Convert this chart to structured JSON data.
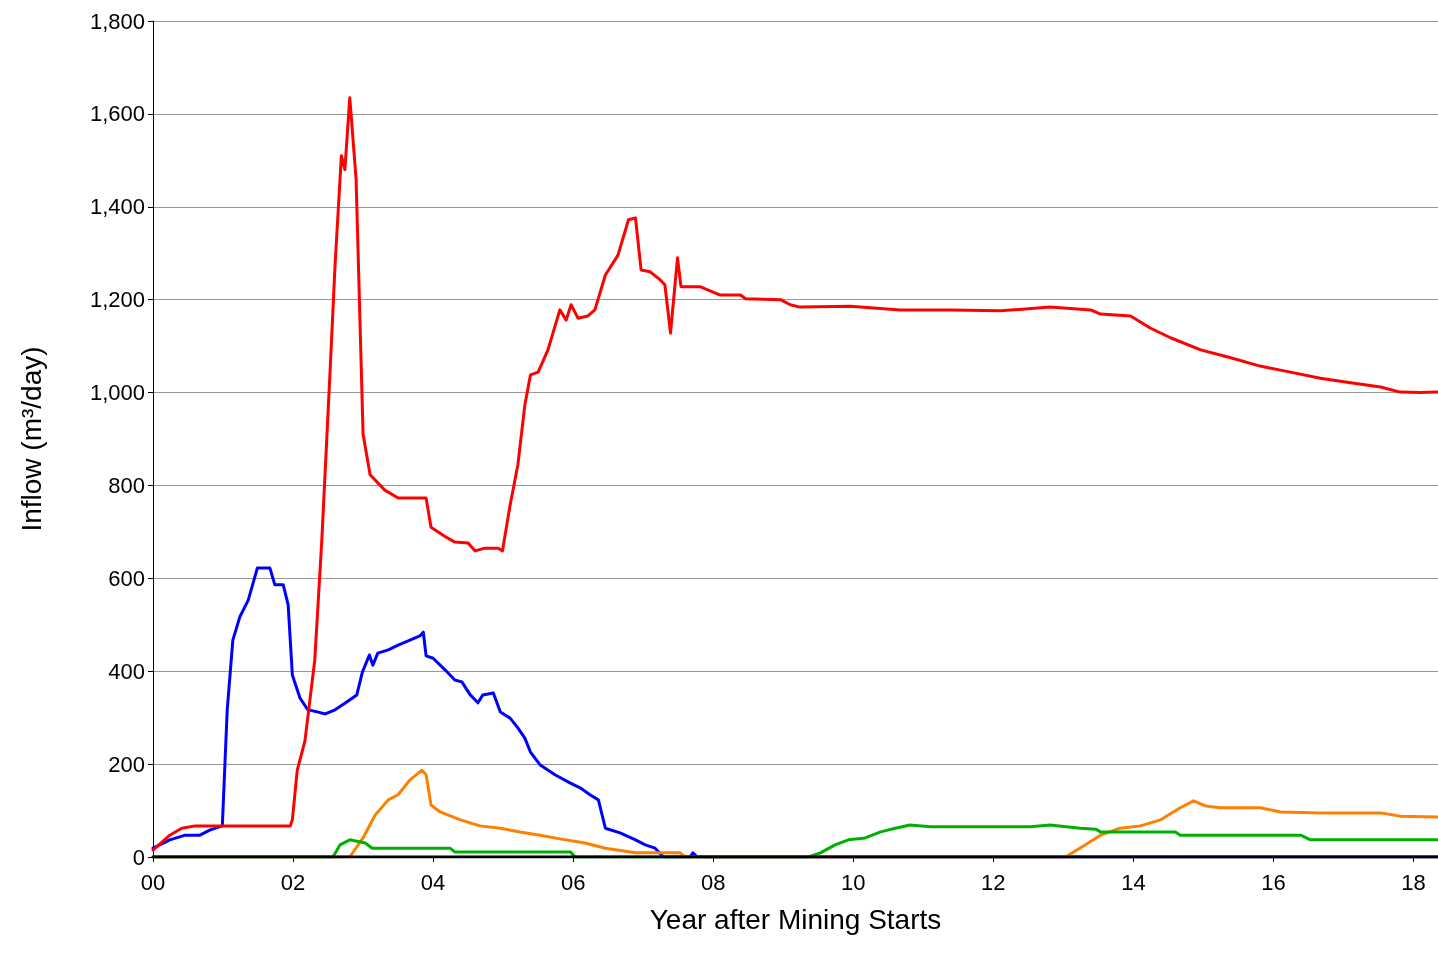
{
  "chart_data": {
    "type": "line",
    "xlabel": "Year after Mining Starts",
    "ylabel": "Inflow (m³/day)",
    "xlim": [
      0,
      18.35
    ],
    "xticks": [
      {
        "value": 0,
        "label": "00"
      },
      {
        "value": 2,
        "label": "02"
      },
      {
        "value": 4,
        "label": "04"
      },
      {
        "value": 6,
        "label": "06"
      },
      {
        "value": 8,
        "label": "08"
      },
      {
        "value": 10,
        "label": "10"
      },
      {
        "value": 12,
        "label": "12"
      },
      {
        "value": 14,
        "label": "14"
      },
      {
        "value": 16,
        "label": "16"
      },
      {
        "value": 18,
        "label": "18"
      }
    ],
    "ylim": [
      0,
      1800
    ],
    "yticks": [
      0,
      200,
      400,
      600,
      800,
      {
        "value": 1000,
        "label": "1,000"
      },
      {
        "value": 1200,
        "label": "1,200"
      },
      {
        "value": 1400,
        "label": "1,400"
      },
      {
        "value": 1600,
        "label": "1,600"
      },
      {
        "value": 1800,
        "label": "1,800"
      }
    ],
    "grid": "y",
    "marker": "none",
    "line_style": "solid",
    "series": [
      {
        "color": "#0000ff",
        "x": [
          0,
          0.24,
          0.46,
          0.67,
          0.81,
          0.99,
          1.06,
          1.14,
          1.24,
          1.36,
          1.49,
          1.67,
          1.74,
          1.86,
          1.93,
          1.99,
          2.1,
          2.21,
          2.36,
          2.46,
          2.6,
          2.74,
          2.91,
          2.99,
          3.09,
          3.14,
          3.21,
          3.36,
          3.5,
          3.67,
          3.81,
          3.86,
          3.9,
          4.0,
          4.17,
          4.31,
          4.41,
          4.53,
          4.64,
          4.71,
          4.86,
          4.96,
          5.1,
          5.21,
          5.31,
          5.39,
          5.53,
          5.74,
          5.96,
          6.1,
          6.24,
          6.36,
          6.46,
          6.67,
          6.89,
          7.03,
          7.17,
          7.29,
          7.67,
          7.71,
          7.77,
          18.34
        ],
        "values": [
          19,
          37,
          47,
          47,
          58,
          67,
          317,
          467,
          517,
          553,
          622,
          622,
          586,
          586,
          543,
          392,
          342,
          317,
          312,
          308,
          317,
          331,
          349,
          398,
          435,
          413,
          439,
          446,
          456,
          467,
          476,
          484,
          433,
          428,
          403,
          381,
          377,
          349,
          332,
          349,
          353,
          312,
          299,
          278,
          256,
          226,
          198,
          177,
          159,
          149,
          134,
          123,
          62,
          52,
          37,
          26,
          19,
          0,
          0,
          9,
          0,
          0
        ]
      },
      {
        "color": "#ff0000",
        "x": [
          0,
          0.24,
          0.41,
          0.6,
          1.96,
          1.99,
          2.06,
          2.17,
          2.31,
          2.41,
          2.53,
          2.6,
          2.69,
          2.74,
          2.81,
          2.9,
          3.0,
          3.1,
          3.31,
          3.5,
          3.9,
          3.97,
          4.17,
          4.31,
          4.5,
          4.6,
          4.74,
          4.93,
          4.99,
          5.1,
          5.21,
          5.31,
          5.39,
          5.5,
          5.64,
          5.81,
          5.9,
          5.97,
          6.07,
          6.21,
          6.31,
          6.46,
          6.64,
          6.79,
          6.89,
          6.97,
          7.1,
          7.24,
          7.31,
          7.39,
          7.49,
          7.54,
          7.81,
          8.1,
          8.39,
          8.46,
          8.96,
          9.1,
          9.24,
          9.96,
          10.67,
          11.39,
          12.1,
          12.81,
          13.39,
          13.53,
          13.96,
          14.24,
          14.53,
          14.96,
          15.39,
          15.81,
          16.24,
          16.67,
          17.1,
          17.53,
          17.81,
          18.1,
          18.34
        ],
        "values": [
          15,
          47,
          62,
          67,
          67,
          80,
          187,
          250,
          424,
          680,
          1050,
          1275,
          1510,
          1480,
          1635,
          1460,
          910,
          823,
          790,
          773,
          773,
          710,
          690,
          678,
          676,
          659,
          665,
          665,
          659,
          758,
          844,
          973,
          1038,
          1044,
          1092,
          1178,
          1156,
          1189,
          1160,
          1165,
          1178,
          1253,
          1296,
          1372,
          1376,
          1264,
          1260,
          1243,
          1232,
          1128,
          1290,
          1228,
          1228,
          1210,
          1210,
          1202,
          1200,
          1189,
          1184,
          1186,
          1178,
          1178,
          1176,
          1184,
          1178,
          1169,
          1165,
          1139,
          1118,
          1092,
          1075,
          1057,
          1044,
          1031,
          1021,
          1012,
          1001,
          1000,
          1001
        ]
      },
      {
        "color": "#ff8000",
        "x": [
          0,
          2.81,
          3.0,
          3.17,
          3.36,
          3.5,
          3.67,
          3.84,
          3.9,
          3.97,
          4.1,
          4.39,
          4.67,
          4.96,
          5.24,
          5.53,
          5.81,
          6.17,
          6.46,
          6.89,
          7.53,
          7.6,
          13.03,
          13.31,
          13.53,
          13.81,
          14.1,
          14.39,
          14.67,
          14.86,
          15.03,
          15.24,
          15.81,
          16.1,
          16.67,
          17.53,
          17.81,
          18.34
        ],
        "values": [
          0,
          0,
          41,
          90,
          123,
          134,
          166,
          187,
          177,
          112,
          97,
          80,
          67,
          62,
          54,
          47,
          39,
          30,
          19,
          9,
          9,
          0,
          0,
          26,
          47,
          62,
          67,
          80,
          106,
          121,
          110,
          106,
          106,
          97,
          95,
          95,
          88,
          86
        ]
      },
      {
        "color": "#00b000",
        "x": [
          0,
          2.57,
          2.67,
          2.81,
          3.03,
          3.13,
          4.24,
          4.31,
          5.96,
          6.03,
          9.36,
          9.53,
          9.74,
          9.93,
          10.17,
          10.39,
          10.6,
          10.81,
          11.1,
          12.53,
          12.81,
          13.24,
          13.46,
          13.53,
          14.6,
          14.67,
          16.39,
          16.53,
          18.34
        ],
        "values": [
          0,
          0,
          26,
          37,
          30,
          19,
          19,
          11,
          11,
          0,
          0,
          9,
          26,
          37,
          41,
          54,
          62,
          69,
          65,
          65,
          69,
          62,
          60,
          54,
          54,
          47,
          47,
          37,
          37
        ]
      },
      {
        "color": "#000000",
        "x": [
          0,
          18.34
        ],
        "values": [
          0,
          0
        ]
      }
    ]
  }
}
